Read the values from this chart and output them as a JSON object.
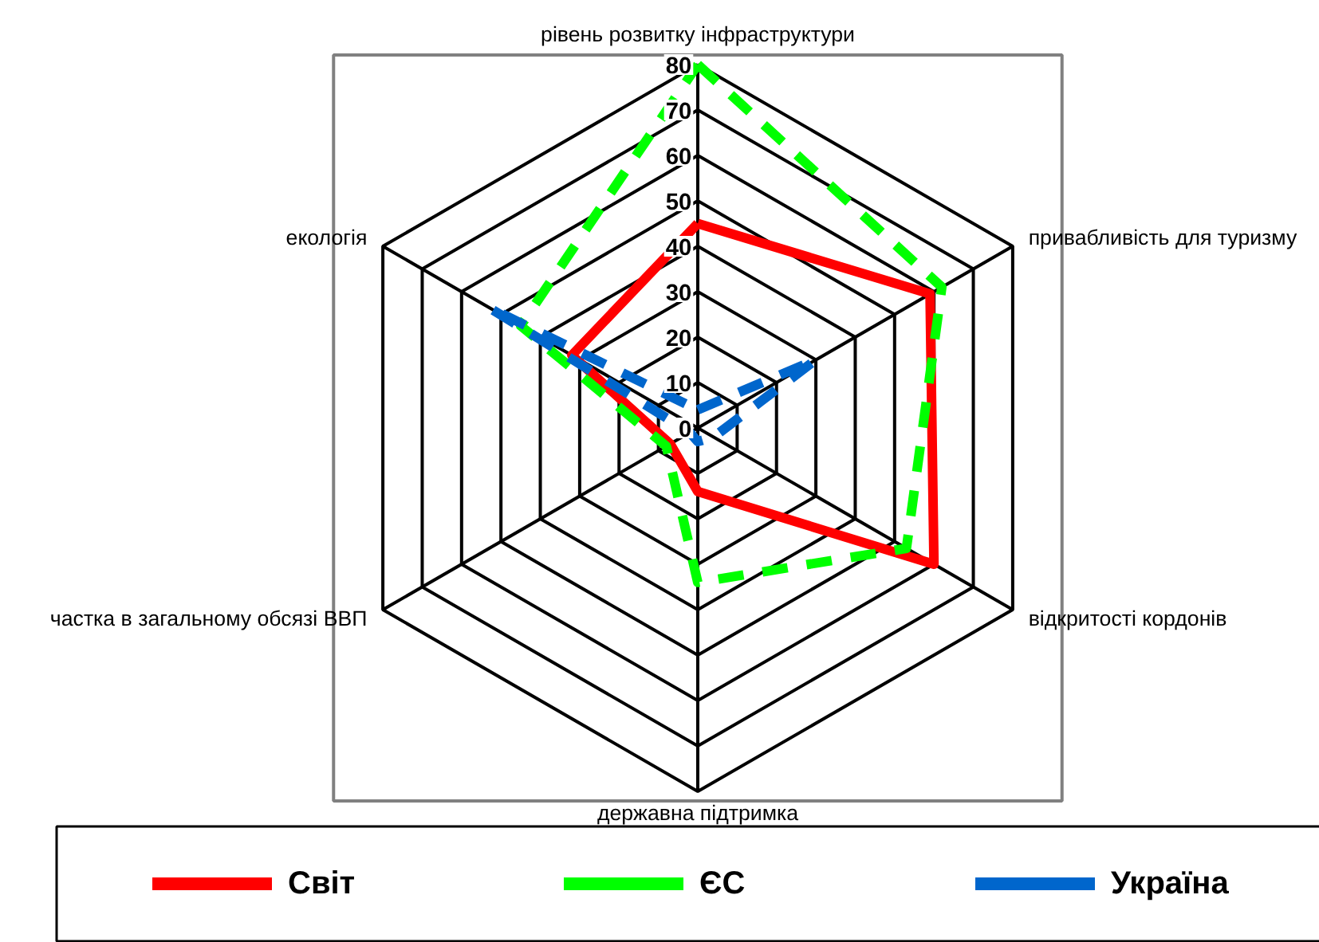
{
  "chart_data": {
    "type": "radar",
    "categories": [
      "рівень розвитку інфраструктури",
      "привабливість для туризму",
      "відкритості кордонів",
      "державна підтримка",
      "частка в загальному обсязі ВВП",
      "екологія"
    ],
    "ylim": [
      0,
      80
    ],
    "yticks": [
      0,
      10,
      20,
      30,
      40,
      50,
      60,
      70,
      80
    ],
    "legend": "bottom",
    "series": [
      {
        "name": "Світ",
        "color": "#ff0000",
        "line_style": "solid",
        "values": [
          45,
          59,
          60,
          14,
          7,
          32
        ]
      },
      {
        "name": "ЄС",
        "color": "#00ff00",
        "line_style": "dashed",
        "values": [
          80,
          62,
          53,
          34,
          8,
          45
        ]
      },
      {
        "name": "Україна",
        "color": "#0066cc",
        "line_style": "dashed",
        "values": [
          4,
          30,
          4,
          3,
          2,
          53
        ]
      }
    ]
  }
}
